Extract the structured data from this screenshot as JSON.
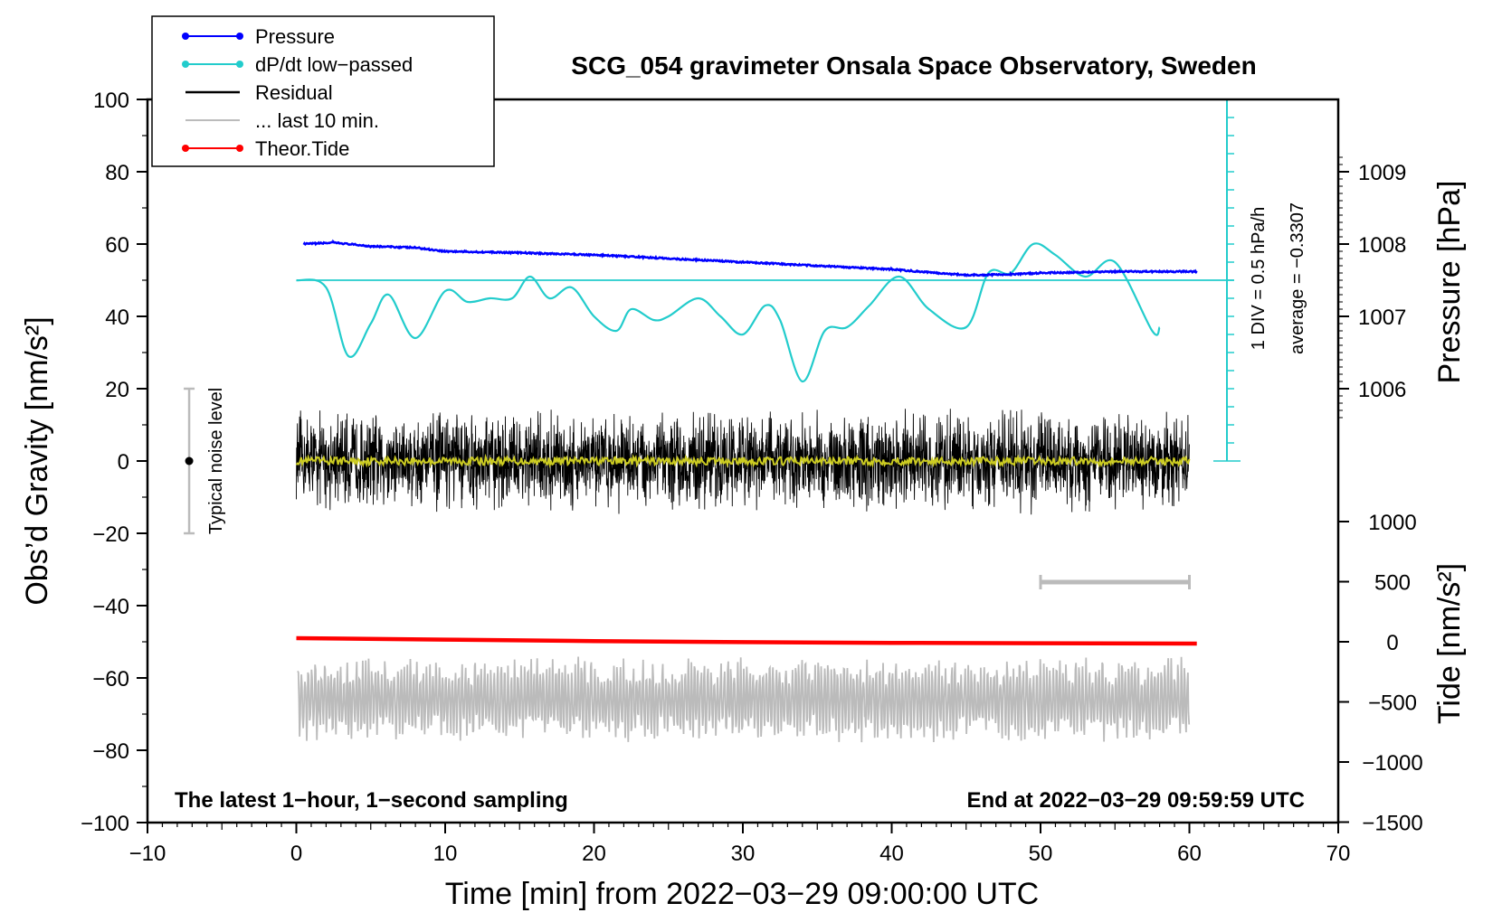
{
  "chart_data": {
    "type": "line",
    "title": "SCG_054 gravimeter Onsala Space Observatory, Sweden",
    "xlabel": "Time [min] from 2022−03−29 09:00:00 UTC",
    "ylabel_left": "Obs’d Gravity [nm/s²]",
    "ylabel_right_pressure": "Pressure [hPa]",
    "ylabel_right_tide": "Tide [nm/s²]",
    "xlim": [
      -10,
      70
    ],
    "ylim_left": [
      -100,
      100
    ],
    "x_ticks": [
      "−10",
      "0",
      "10",
      "20",
      "30",
      "40",
      "50",
      "60",
      "70"
    ],
    "y_ticks_left": [
      "−100",
      "−80",
      "−60",
      "−40",
      "−20",
      "0",
      "20",
      "40",
      "60",
      "80",
      "100"
    ],
    "pressure_ticks": [
      "1006",
      "1007",
      "1008",
      "1009"
    ],
    "tide_ticks": [
      "−1500",
      "−1000",
      "−500",
      "0",
      "500",
      "1000"
    ],
    "legend": [
      {
        "label": "Pressure",
        "color": "#0000ff",
        "marker": true
      },
      {
        "label": "dP/dt low−passed",
        "color": "#22cccc",
        "marker": true
      },
      {
        "label": "Residual",
        "color": "#000000",
        "marker": false
      },
      {
        "label": "... last 10 min.",
        "color": "#bbbbbb",
        "marker": false
      },
      {
        "label": "Theor.Tide",
        "color": "#ff0000",
        "marker": true
      }
    ],
    "dpdt_scale_label": "1 DIV = 0.5 hPa/h",
    "dpdt_average_label": "average = −0.3307",
    "noise_label": "Typical noise level",
    "noise_range": [
      -20,
      20
    ],
    "footer_left": "The latest 1−hour, 1−second sampling",
    "footer_right": "End at 2022−03−29 09:59:59 UTC",
    "last10_range_min": [
      50,
      60
    ],
    "series": {
      "pressure_hpa": {
        "x": [
          0.5,
          2.5,
          5,
          8,
          10,
          15,
          20,
          25,
          30,
          35,
          40,
          45,
          48,
          50,
          55,
          60.5
        ],
        "values": [
          1008.0,
          1008.02,
          1007.97,
          1007.95,
          1007.9,
          1007.88,
          1007.85,
          1007.8,
          1007.75,
          1007.7,
          1007.65,
          1007.57,
          1007.58,
          1007.6,
          1007.62,
          1007.62
        ]
      },
      "dpdt_low_passed_gravity_units": {
        "x": [
          0,
          2,
          3.5,
          5,
          6.2,
          8,
          10,
          11.5,
          13,
          14.5,
          15.7,
          17,
          18.5,
          20,
          21.5,
          22.5,
          24,
          25,
          27,
          28.5,
          30,
          31.5,
          32.5,
          34,
          35.5,
          37,
          38.5,
          40.5,
          42.5,
          45,
          46.5,
          48,
          49.5,
          51,
          53,
          55,
          57.5,
          58
        ],
        "values": [
          50,
          48,
          29,
          38,
          46,
          34,
          47,
          44,
          45,
          45,
          51,
          45,
          48,
          40,
          36,
          42,
          39,
          40,
          45,
          40,
          35,
          43,
          39,
          22,
          36,
          37,
          43,
          51,
          42,
          37,
          52,
          52,
          60,
          57,
          51,
          55,
          36,
          37
        ]
      },
      "residual_nm_s2": {
        "x_range": [
          0,
          60
        ],
        "amplitude": 15,
        "baseline": 0
      },
      "last_10_min_nm_s2": {
        "x_range": [
          0,
          60
        ],
        "amplitude": 16,
        "baseline": -66
      },
      "theoretical_tide_nm_s2": {
        "x": [
          0,
          10,
          20,
          30,
          40,
          50,
          60.5
        ],
        "values": [
          -49,
          -49.4,
          -49.8,
          -50.1,
          -50.3,
          -50.4,
          -50.5
        ]
      }
    }
  }
}
